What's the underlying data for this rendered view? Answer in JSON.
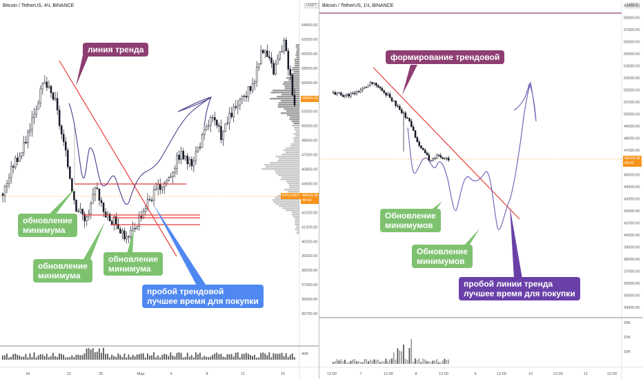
{
  "left_chart": {
    "header": "Bitcoin / TetherUS, 4Ч, BINANCE",
    "unit_badge": "USDT",
    "price_ticks": [
      "64000.00",
      "62000.00",
      "60000.00",
      "58000.00",
      "56000.00",
      "54000.00",
      "52000.00",
      "50000.00",
      "48600.00",
      "47000.00",
      "45800.00",
      "44600.00",
      "43400.00",
      "42200.00",
      "41200.00",
      "40200.00",
      "39200.00",
      "38200.00",
      "37300.00",
      "36500.00",
      "35700.00"
    ],
    "volume_tick": "40K",
    "time_ticks": [
      "18",
      "22",
      "25",
      "Мар",
      "4",
      "8",
      "11",
      "15"
    ],
    "current_price_1": "55844.92",
    "current_price_2": "46529.06",
    "current_price_2_sub": "49:42",
    "symbol_tag": "BTCUSDT",
    "callouts": {
      "trend_line": "линия тренда",
      "low_update_1": [
        "обновление",
        "минимума"
      ],
      "low_update_2": [
        "обновление",
        "минимума"
      ],
      "low_update_3": [
        "обновление",
        "минимума"
      ],
      "breakout": [
        "пробой трендовой",
        "лучшее время для покупки"
      ]
    },
    "colors": {
      "trend": "#e53935",
      "candle": "#131722",
      "callout_green": "#7ec270",
      "callout_purple": "#8e3e73",
      "callout_blue": "#4f88f0",
      "path": "#4a3a8a",
      "levels": "#e53935"
    }
  },
  "right_chart": {
    "header": "Bitcoin / TetherUS, 1Ч, BINANCE",
    "unit_badge": "USDT",
    "price_ticks": [
      "59000.00",
      "58000.00",
      "57000.00",
      "56000.00",
      "55000.00",
      "54000.00",
      "53000.00",
      "52000.00",
      "51000.00",
      "50000.00",
      "49000.00",
      "48000.00",
      "47000.00",
      "46000.00",
      "45000.00",
      "44000.00",
      "43000.00",
      "42000.00",
      "41000.00",
      "40000.00",
      "39000.00",
      "38000.00",
      "37000.00",
      "36000.00",
      "35000.00",
      "34000.00"
    ],
    "volume_ticks": [
      "20K",
      "15K",
      "10K"
    ],
    "time_ticks": [
      "12:00",
      "7",
      "12:00",
      "8",
      "12:00",
      "9",
      "12:00",
      "10",
      "12:00",
      "11",
      "12:00"
    ],
    "current_price": "46529.06",
    "current_price_sub": "49:42",
    "callouts": {
      "trend_forming": "формирование трендовой",
      "lows_update_1": [
        "Обновление",
        "минимумов"
      ],
      "lows_update_2": [
        "Обновление",
        "минимумов"
      ],
      "breakout": [
        "пробой линии тренда",
        "лучшее время для покупки"
      ]
    },
    "colors": {
      "trend": "#e53935",
      "resistance": "#8e3e73",
      "callout_green": "#7ec270",
      "callout_purple": "#8e3e73",
      "callout_violet": "#6a40a8",
      "path": "#6a5ab0"
    }
  },
  "chart_data": [
    {
      "type": "candlestick",
      "title": "Bitcoin / TetherUS, 4Ч, BINANCE",
      "ylim": [
        35700,
        64000
      ],
      "x_ticks": [
        "18",
        "22",
        "25",
        "Мар",
        "4",
        "8",
        "11",
        "15"
      ],
      "approx_close_path": [
        48000,
        50500,
        52000,
        55000,
        57500,
        56000,
        51500,
        47000,
        45800,
        48500,
        46000,
        45500,
        44000,
        45800,
        47500,
        48500,
        49500,
        51500,
        50500,
        52500,
        54500,
        53000,
        55000,
        56000,
        57500,
        60500,
        58500,
        61000,
        55844.92
      ],
      "annotations": [
        "линия тренда",
        "обновление минимума",
        "пробой трендовой лучшее время для покупки"
      ]
    },
    {
      "type": "line",
      "title": "Bitcoin / TetherUS, 1Ч, BINANCE",
      "ylim": [
        34000,
        59000
      ],
      "x_ticks": [
        "12:00",
        "7",
        "12:00",
        "8",
        "12:00",
        "9",
        "12:00",
        "10",
        "12:00",
        "11",
        "12:00"
      ],
      "approx_close_path": [
        51900,
        51700,
        51800,
        52200,
        52700,
        52200,
        51500,
        50500,
        49500,
        47500,
        46500,
        46800,
        46529.06
      ],
      "annotations": [
        "формирование трендовой",
        "Обновление минимумов",
        "пробой линии тренда лучшее время для покупки"
      ]
    }
  ]
}
